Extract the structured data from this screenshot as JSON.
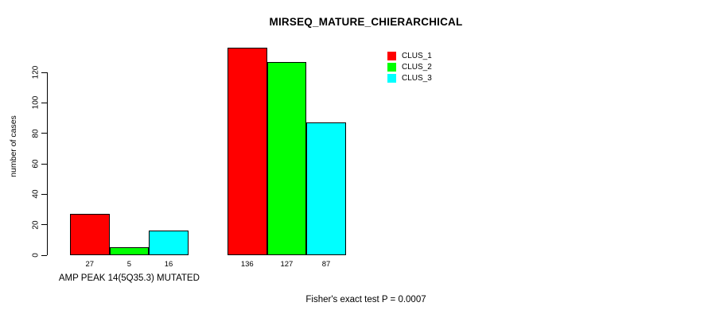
{
  "chart_data": {
    "type": "bar",
    "title": "MIRSEQ_MATURE_CHIERARCHICAL",
    "ylabel": "number of cases",
    "xlabel": "",
    "ylim": [
      0,
      140
    ],
    "yticks": [
      0,
      20,
      40,
      60,
      80,
      100,
      120
    ],
    "grid": false,
    "legend_position": "top-right",
    "series": [
      {
        "name": "CLUS_1",
        "color": "#FF0000"
      },
      {
        "name": "CLUS_2",
        "color": "#00FF00"
      },
      {
        "name": "CLUS_3",
        "color": "#00FFFF"
      }
    ],
    "groups": [
      {
        "label": "AMP PEAK 14(5Q35.3) MUTATED",
        "values": [
          27,
          5,
          16
        ]
      },
      {
        "label": "",
        "values": [
          136,
          127,
          87
        ]
      }
    ],
    "footer": "Fisher's exact test P = 0.0007"
  }
}
